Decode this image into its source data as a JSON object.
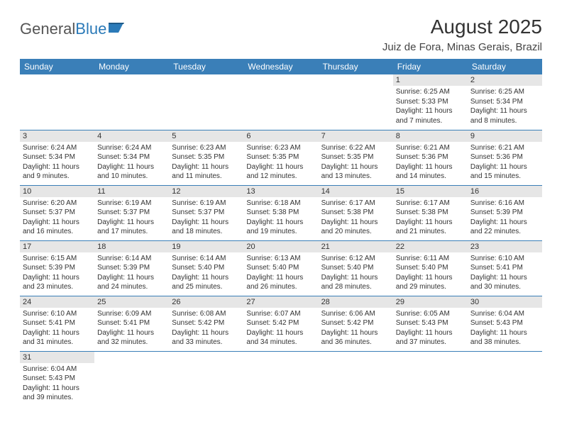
{
  "logo": {
    "general": "General",
    "blue": "Blue"
  },
  "header": {
    "month_title": "August 2025",
    "location": "Juiz de Fora, Minas Gerais, Brazil"
  },
  "colors": {
    "header_bg": "#3a7fb8",
    "header_text": "#ffffff",
    "daynum_bg": "#e6e6e6",
    "border": "#3a7fb8",
    "text": "#333333",
    "logo_blue": "#2b7ab8"
  },
  "weekdays": [
    "Sunday",
    "Monday",
    "Tuesday",
    "Wednesday",
    "Thursday",
    "Friday",
    "Saturday"
  ],
  "weeks": [
    [
      {
        "day": "",
        "sunrise": "",
        "sunset": "",
        "daylight": ""
      },
      {
        "day": "",
        "sunrise": "",
        "sunset": "",
        "daylight": ""
      },
      {
        "day": "",
        "sunrise": "",
        "sunset": "",
        "daylight": ""
      },
      {
        "day": "",
        "sunrise": "",
        "sunset": "",
        "daylight": ""
      },
      {
        "day": "",
        "sunrise": "",
        "sunset": "",
        "daylight": ""
      },
      {
        "day": "1",
        "sunrise": "Sunrise: 6:25 AM",
        "sunset": "Sunset: 5:33 PM",
        "daylight": "Daylight: 11 hours and 7 minutes."
      },
      {
        "day": "2",
        "sunrise": "Sunrise: 6:25 AM",
        "sunset": "Sunset: 5:34 PM",
        "daylight": "Daylight: 11 hours and 8 minutes."
      }
    ],
    [
      {
        "day": "3",
        "sunrise": "Sunrise: 6:24 AM",
        "sunset": "Sunset: 5:34 PM",
        "daylight": "Daylight: 11 hours and 9 minutes."
      },
      {
        "day": "4",
        "sunrise": "Sunrise: 6:24 AM",
        "sunset": "Sunset: 5:34 PM",
        "daylight": "Daylight: 11 hours and 10 minutes."
      },
      {
        "day": "5",
        "sunrise": "Sunrise: 6:23 AM",
        "sunset": "Sunset: 5:35 PM",
        "daylight": "Daylight: 11 hours and 11 minutes."
      },
      {
        "day": "6",
        "sunrise": "Sunrise: 6:23 AM",
        "sunset": "Sunset: 5:35 PM",
        "daylight": "Daylight: 11 hours and 12 minutes."
      },
      {
        "day": "7",
        "sunrise": "Sunrise: 6:22 AM",
        "sunset": "Sunset: 5:35 PM",
        "daylight": "Daylight: 11 hours and 13 minutes."
      },
      {
        "day": "8",
        "sunrise": "Sunrise: 6:21 AM",
        "sunset": "Sunset: 5:36 PM",
        "daylight": "Daylight: 11 hours and 14 minutes."
      },
      {
        "day": "9",
        "sunrise": "Sunrise: 6:21 AM",
        "sunset": "Sunset: 5:36 PM",
        "daylight": "Daylight: 11 hours and 15 minutes."
      }
    ],
    [
      {
        "day": "10",
        "sunrise": "Sunrise: 6:20 AM",
        "sunset": "Sunset: 5:37 PM",
        "daylight": "Daylight: 11 hours and 16 minutes."
      },
      {
        "day": "11",
        "sunrise": "Sunrise: 6:19 AM",
        "sunset": "Sunset: 5:37 PM",
        "daylight": "Daylight: 11 hours and 17 minutes."
      },
      {
        "day": "12",
        "sunrise": "Sunrise: 6:19 AM",
        "sunset": "Sunset: 5:37 PM",
        "daylight": "Daylight: 11 hours and 18 minutes."
      },
      {
        "day": "13",
        "sunrise": "Sunrise: 6:18 AM",
        "sunset": "Sunset: 5:38 PM",
        "daylight": "Daylight: 11 hours and 19 minutes."
      },
      {
        "day": "14",
        "sunrise": "Sunrise: 6:17 AM",
        "sunset": "Sunset: 5:38 PM",
        "daylight": "Daylight: 11 hours and 20 minutes."
      },
      {
        "day": "15",
        "sunrise": "Sunrise: 6:17 AM",
        "sunset": "Sunset: 5:38 PM",
        "daylight": "Daylight: 11 hours and 21 minutes."
      },
      {
        "day": "16",
        "sunrise": "Sunrise: 6:16 AM",
        "sunset": "Sunset: 5:39 PM",
        "daylight": "Daylight: 11 hours and 22 minutes."
      }
    ],
    [
      {
        "day": "17",
        "sunrise": "Sunrise: 6:15 AM",
        "sunset": "Sunset: 5:39 PM",
        "daylight": "Daylight: 11 hours and 23 minutes."
      },
      {
        "day": "18",
        "sunrise": "Sunrise: 6:14 AM",
        "sunset": "Sunset: 5:39 PM",
        "daylight": "Daylight: 11 hours and 24 minutes."
      },
      {
        "day": "19",
        "sunrise": "Sunrise: 6:14 AM",
        "sunset": "Sunset: 5:40 PM",
        "daylight": "Daylight: 11 hours and 25 minutes."
      },
      {
        "day": "20",
        "sunrise": "Sunrise: 6:13 AM",
        "sunset": "Sunset: 5:40 PM",
        "daylight": "Daylight: 11 hours and 26 minutes."
      },
      {
        "day": "21",
        "sunrise": "Sunrise: 6:12 AM",
        "sunset": "Sunset: 5:40 PM",
        "daylight": "Daylight: 11 hours and 28 minutes."
      },
      {
        "day": "22",
        "sunrise": "Sunrise: 6:11 AM",
        "sunset": "Sunset: 5:40 PM",
        "daylight": "Daylight: 11 hours and 29 minutes."
      },
      {
        "day": "23",
        "sunrise": "Sunrise: 6:10 AM",
        "sunset": "Sunset: 5:41 PM",
        "daylight": "Daylight: 11 hours and 30 minutes."
      }
    ],
    [
      {
        "day": "24",
        "sunrise": "Sunrise: 6:10 AM",
        "sunset": "Sunset: 5:41 PM",
        "daylight": "Daylight: 11 hours and 31 minutes."
      },
      {
        "day": "25",
        "sunrise": "Sunrise: 6:09 AM",
        "sunset": "Sunset: 5:41 PM",
        "daylight": "Daylight: 11 hours and 32 minutes."
      },
      {
        "day": "26",
        "sunrise": "Sunrise: 6:08 AM",
        "sunset": "Sunset: 5:42 PM",
        "daylight": "Daylight: 11 hours and 33 minutes."
      },
      {
        "day": "27",
        "sunrise": "Sunrise: 6:07 AM",
        "sunset": "Sunset: 5:42 PM",
        "daylight": "Daylight: 11 hours and 34 minutes."
      },
      {
        "day": "28",
        "sunrise": "Sunrise: 6:06 AM",
        "sunset": "Sunset: 5:42 PM",
        "daylight": "Daylight: 11 hours and 36 minutes."
      },
      {
        "day": "29",
        "sunrise": "Sunrise: 6:05 AM",
        "sunset": "Sunset: 5:43 PM",
        "daylight": "Daylight: 11 hours and 37 minutes."
      },
      {
        "day": "30",
        "sunrise": "Sunrise: 6:04 AM",
        "sunset": "Sunset: 5:43 PM",
        "daylight": "Daylight: 11 hours and 38 minutes."
      }
    ],
    [
      {
        "day": "31",
        "sunrise": "Sunrise: 6:04 AM",
        "sunset": "Sunset: 5:43 PM",
        "daylight": "Daylight: 11 hours and 39 minutes."
      },
      {
        "day": "",
        "sunrise": "",
        "sunset": "",
        "daylight": ""
      },
      {
        "day": "",
        "sunrise": "",
        "sunset": "",
        "daylight": ""
      },
      {
        "day": "",
        "sunrise": "",
        "sunset": "",
        "daylight": ""
      },
      {
        "day": "",
        "sunrise": "",
        "sunset": "",
        "daylight": ""
      },
      {
        "day": "",
        "sunrise": "",
        "sunset": "",
        "daylight": ""
      },
      {
        "day": "",
        "sunrise": "",
        "sunset": "",
        "daylight": ""
      }
    ]
  ]
}
